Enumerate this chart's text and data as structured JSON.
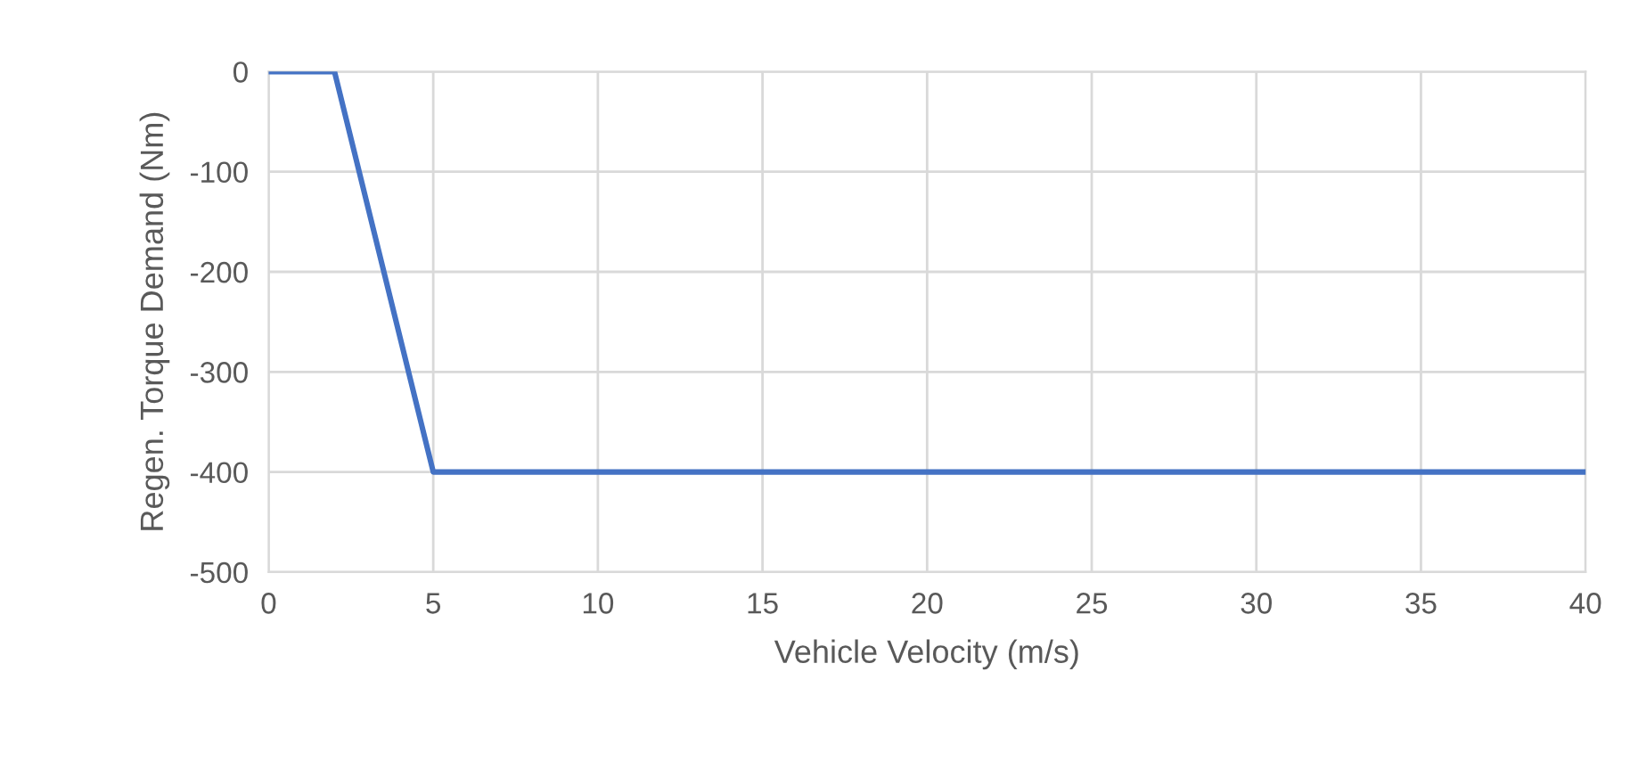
{
  "chart_data": {
    "type": "line",
    "xlabel": "Vehicle Velocity (m/s)",
    "ylabel": "Regen. Torque Demand (Nm)",
    "x": [
      0,
      2,
      5,
      40
    ],
    "series": [
      {
        "color": "#4472c4",
        "values": [
          0,
          0,
          -400,
          -400
        ]
      }
    ],
    "xlim": [
      0,
      40
    ],
    "xticks": [
      0,
      5,
      10,
      15,
      20,
      25,
      30,
      35,
      40
    ],
    "ylim": [
      -500,
      0
    ],
    "yticks": [
      -500,
      -400,
      -300,
      -200,
      -100,
      0
    ],
    "grid": true,
    "marker": "none",
    "line_style": "solid"
  }
}
